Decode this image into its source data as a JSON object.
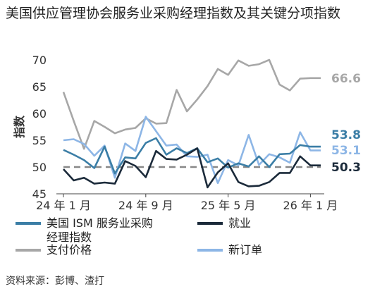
{
  "title": "美国供应管理协会服务业采购经理指数及其关键分项指数",
  "source": "资料来源：彭博、渣打",
  "chart_data": {
    "type": "line",
    "ylabel": "指数",
    "ylim": [
      45,
      70
    ],
    "yticks": [
      45,
      50,
      55,
      60,
      65,
      70
    ],
    "x_start": "2024-01",
    "x_count": 26,
    "x_ticks": [
      {
        "index": 0,
        "label": "24 年 1 月"
      },
      {
        "index": 8,
        "label": "24 年 9 月"
      },
      {
        "index": 16,
        "label": "25 年 5 月"
      },
      {
        "index": 24,
        "label": "26 年 1 月"
      }
    ],
    "reference_line": 50,
    "series": [
      {
        "name": "美国 ISM 服务业采购经理指数",
        "color": "#3b7ea6",
        "values": [
          53.2,
          52.3,
          51.3,
          49.8,
          53.8,
          48.8,
          51.8,
          51.6,
          54.5,
          55.4,
          52.3,
          53.5,
          52.6,
          53.5,
          50.9,
          51.6,
          49.9,
          50.7,
          50.1,
          52.0,
          50.0,
          52.4,
          52.5,
          54.1,
          53.8,
          53.8
        ],
        "end_label": "53.8"
      },
      {
        "name": "就业",
        "color": "#1b2a3a",
        "values": [
          49.6,
          47.5,
          48.0,
          46.9,
          47.1,
          46.9,
          51.1,
          50.2,
          48.1,
          53.0,
          51.5,
          51.4,
          52.3,
          53.5,
          46.2,
          49.0,
          50.7,
          47.2,
          46.4,
          46.5,
          47.2,
          48.9,
          48.9,
          52.0,
          50.3,
          50.3
        ],
        "end_label": "50.3"
      },
      {
        "name": "支付价格",
        "color": "#a7a7a7",
        "values": [
          64.0,
          58.6,
          53.4,
          58.6,
          57.5,
          56.3,
          57.0,
          57.3,
          59.1,
          58.1,
          58.2,
          64.4,
          60.4,
          62.6,
          65.1,
          68.3,
          67.2,
          69.9,
          68.9,
          69.2,
          70.0,
          65.4,
          64.3,
          66.5,
          66.6,
          66.6
        ],
        "end_label": "66.6"
      },
      {
        "name": "新订单",
        "color": "#8db6e6",
        "values": [
          55.0,
          55.2,
          54.3,
          52.1,
          54.0,
          48.0,
          54.4,
          53.0,
          59.4,
          56.7,
          54.0,
          54.2,
          52.0,
          51.9,
          52.3,
          47.0,
          51.3,
          50.3,
          56.0,
          50.4,
          52.4,
          51.8,
          50.8,
          56.5,
          53.1,
          53.1
        ],
        "end_label": "53.1"
      }
    ],
    "legend": [
      {
        "label": "美国 ISM 服务业采购经理指数",
        "color": "#3b7ea6"
      },
      {
        "label": "就业",
        "color": "#1b2a3a"
      },
      {
        "label": "支付价格",
        "color": "#a7a7a7"
      },
      {
        "label": "新订单",
        "color": "#8db6e6"
      }
    ]
  }
}
